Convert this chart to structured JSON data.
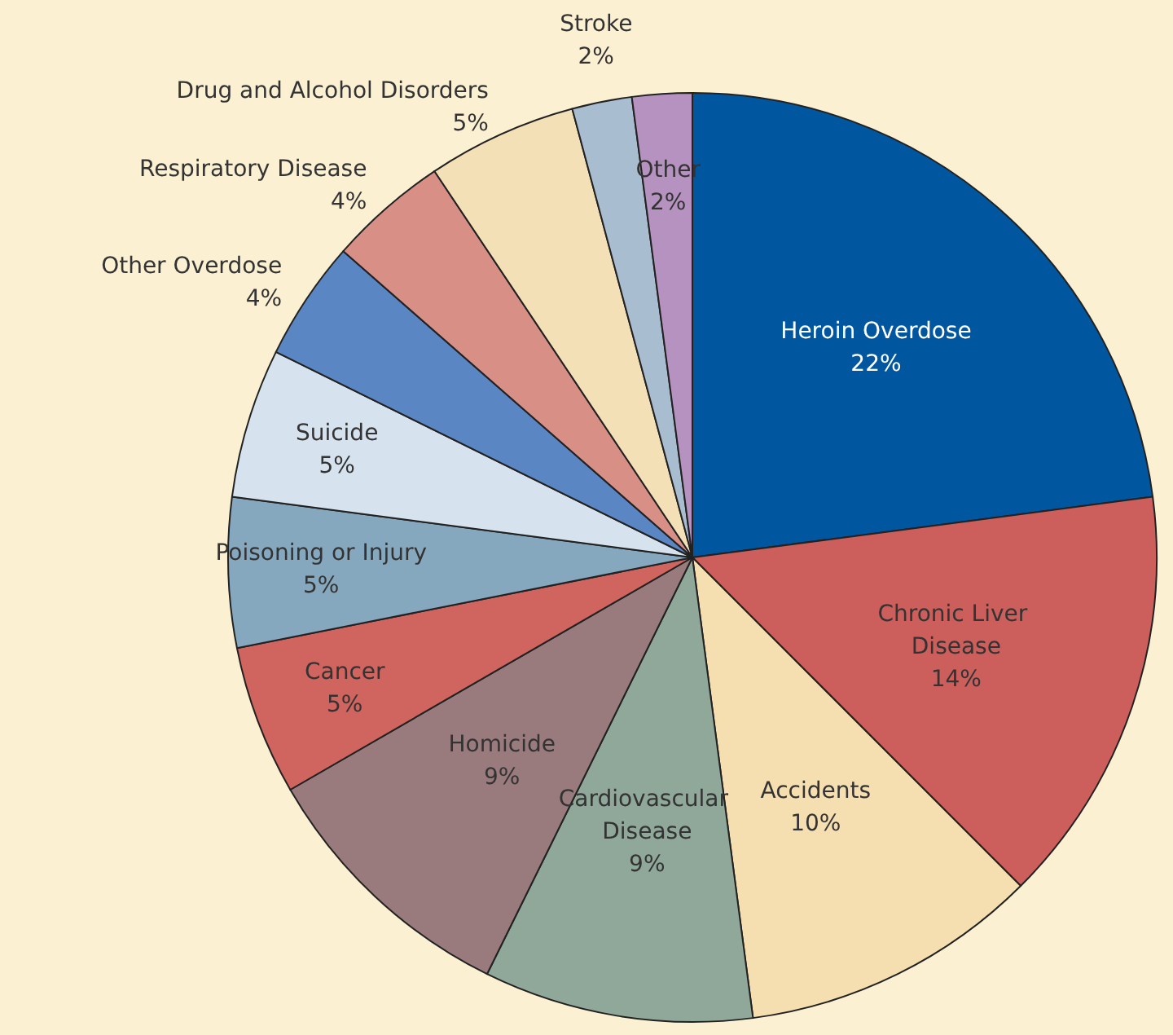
{
  "chart_data": {
    "type": "pie",
    "categories": [
      "Heroin Overdose",
      "Chronic Liver Disease",
      "Accidents",
      "Cardiovascular Disease",
      "Homicide",
      "Cancer",
      "Poisoning or Injury",
      "Suicide",
      "Other Overdose",
      "Respiratory Disease",
      "Drug and Alcohol Disorders",
      "Stroke",
      "Other"
    ],
    "values": [
      22,
      14,
      10,
      9,
      9,
      5,
      5,
      5,
      4,
      4,
      5,
      2,
      2
    ],
    "value_labels": [
      "22%",
      "14%",
      "10%",
      "9%",
      "9%",
      "5%",
      "5%",
      "5%",
      "4%",
      "4%",
      "5%",
      "2%",
      "2%"
    ],
    "colors": [
      "#0057a0",
      "#cc5f5c",
      "#f5deb0",
      "#8fa89a",
      "#9a7b7d",
      "#d0645e",
      "#86a8bf",
      "#d6e3ee",
      "#5b86c4",
      "#d88f86",
      "#f4e0b7",
      "#a9bdd0",
      "#b592bf"
    ],
    "legend": false
  }
}
